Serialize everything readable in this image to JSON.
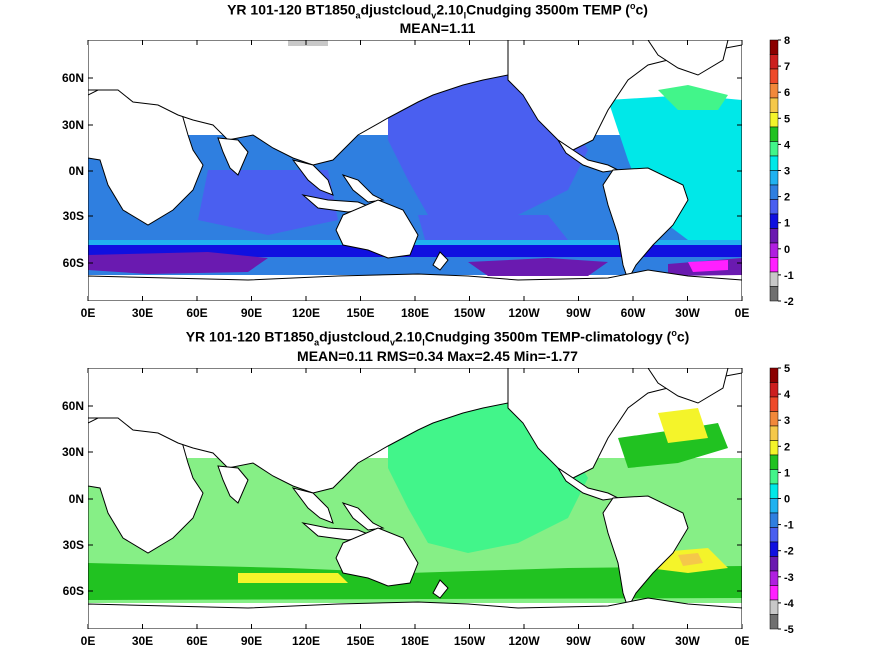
{
  "chart_data": [
    {
      "type": "heatmap",
      "title_parts": [
        "YR 101-120 BT1850",
        "a",
        "djustcloud",
        "v",
        "2.10",
        "l",
        "Cnudging 3500m TEMP (",
        "o",
        "c)"
      ],
      "subtitle": "MEAN=1.11",
      "x_ticks": [
        "0E",
        "30E",
        "60E",
        "90E",
        "120E",
        "150E",
        "180E",
        "150W",
        "120W",
        "90W",
        "60W",
        "30W",
        "0E"
      ],
      "y_ticks": [
        "60N",
        "30N",
        "0N",
        "30S",
        "60S"
      ],
      "colorbar": {
        "labels": [
          "8",
          "7",
          "6",
          "5",
          "4",
          "3",
          "2",
          "1",
          "0",
          "-1",
          "-2"
        ],
        "colors": [
          "#8b0000",
          "#cc1f1f",
          "#ee4a2a",
          "#f2883a",
          "#f5c84a",
          "#f4f42a",
          "#21c221",
          "#42f58a",
          "#00e8e8",
          "#20b2f0",
          "#2f7fe0",
          "#4a5ff0",
          "#1010e0",
          "#6a1ab0",
          "#b020e0",
          "#ff20ff",
          "#c8c8c8",
          "#707070"
        ]
      }
    },
    {
      "type": "heatmap",
      "title_parts": [
        "YR 101-120 BT1850",
        "a",
        "djustcloud",
        "v",
        "2.10",
        "l",
        "Cnudging 3500m TEMP-climatology (",
        "o",
        "c)"
      ],
      "subtitle": "MEAN=0.11   RMS=0.34   Max=2.45   Min=-1.77",
      "x_ticks": [
        "0E",
        "30E",
        "60E",
        "90E",
        "120E",
        "150E",
        "180E",
        "150W",
        "120W",
        "90W",
        "60W",
        "30W",
        "0E"
      ],
      "y_ticks": [
        "60N",
        "30N",
        "0N",
        "30S",
        "60S"
      ],
      "colorbar": {
        "labels": [
          "5",
          "4",
          "3",
          "2",
          "1",
          "0",
          "-1",
          "-2",
          "-3",
          "-4",
          "-5"
        ],
        "colors": [
          "#8b0000",
          "#cc1f1f",
          "#ee4a2a",
          "#f2883a",
          "#f5c84a",
          "#f4f42a",
          "#21c221",
          "#42f58a",
          "#00e8e8",
          "#20b2f0",
          "#2f7fe0",
          "#4a5ff0",
          "#1010e0",
          "#6a1ab0",
          "#b020e0",
          "#ff20ff",
          "#c8c8c8",
          "#707070"
        ]
      }
    }
  ]
}
